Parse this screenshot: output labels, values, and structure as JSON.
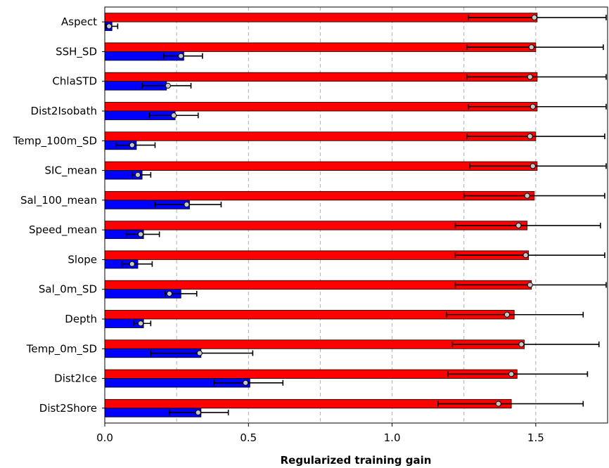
{
  "chart_data": {
    "type": "bar",
    "orientation": "horizontal",
    "title": "",
    "xlabel": "Regularized training gain",
    "ylabel": "",
    "xlim": [
      0,
      1.75
    ],
    "xticks": [
      0,
      0.5,
      1,
      1.5
    ],
    "xtick_labels": [
      "0.0",
      "0.5",
      "1.0",
      "1.5"
    ],
    "grid": "vertical dashed lines at every 0.25",
    "legend": "none",
    "categories": [
      "Aspect",
      "SSH_SD",
      "ChlaSTD",
      "Dist2Isobath",
      "Temp_100m_SD",
      "SIC_mean",
      "Sal_100_mean",
      "Speed_mean",
      "Slope",
      "Sal_0m_SD",
      "Depth",
      "Temp_0m_SD",
      "Dist2Ice",
      "Dist2Shore"
    ],
    "series": [
      {
        "color": "#ff0000",
        "values": [
          1.505,
          1.5,
          1.505,
          1.505,
          1.5,
          1.505,
          1.495,
          1.47,
          1.475,
          1.485,
          1.425,
          1.46,
          1.435,
          1.415
        ],
        "points": [
          1.495,
          1.485,
          1.48,
          1.49,
          1.48,
          1.49,
          1.47,
          1.44,
          1.465,
          1.48,
          1.4,
          1.45,
          1.415,
          1.37
        ],
        "err_low": [
          1.265,
          1.26,
          1.26,
          1.265,
          1.26,
          1.27,
          1.25,
          1.22,
          1.22,
          1.22,
          1.19,
          1.21,
          1.195,
          1.16
        ],
        "err_high": [
          1.745,
          1.735,
          1.745,
          1.745,
          1.74,
          1.745,
          1.74,
          1.725,
          1.74,
          1.745,
          1.665,
          1.72,
          1.68,
          1.665
        ]
      },
      {
        "color": "#0000ff",
        "values": [
          0.025,
          0.275,
          0.215,
          0.245,
          0.11,
          0.13,
          0.295,
          0.135,
          0.115,
          0.265,
          0.135,
          0.335,
          0.505,
          0.335
        ],
        "points": [
          0.015,
          0.265,
          0.22,
          0.24,
          0.095,
          0.115,
          0.285,
          0.125,
          0.095,
          0.225,
          0.125,
          0.33,
          0.49,
          0.325
        ],
        "err_low": [
          0.005,
          0.205,
          0.13,
          0.155,
          0.04,
          0.095,
          0.175,
          0.075,
          0.06,
          0.21,
          0.1,
          0.16,
          0.38,
          0.225
        ],
        "err_high": [
          0.045,
          0.34,
          0.3,
          0.325,
          0.175,
          0.16,
          0.405,
          0.19,
          0.165,
          0.32,
          0.16,
          0.515,
          0.62,
          0.43
        ]
      }
    ]
  }
}
